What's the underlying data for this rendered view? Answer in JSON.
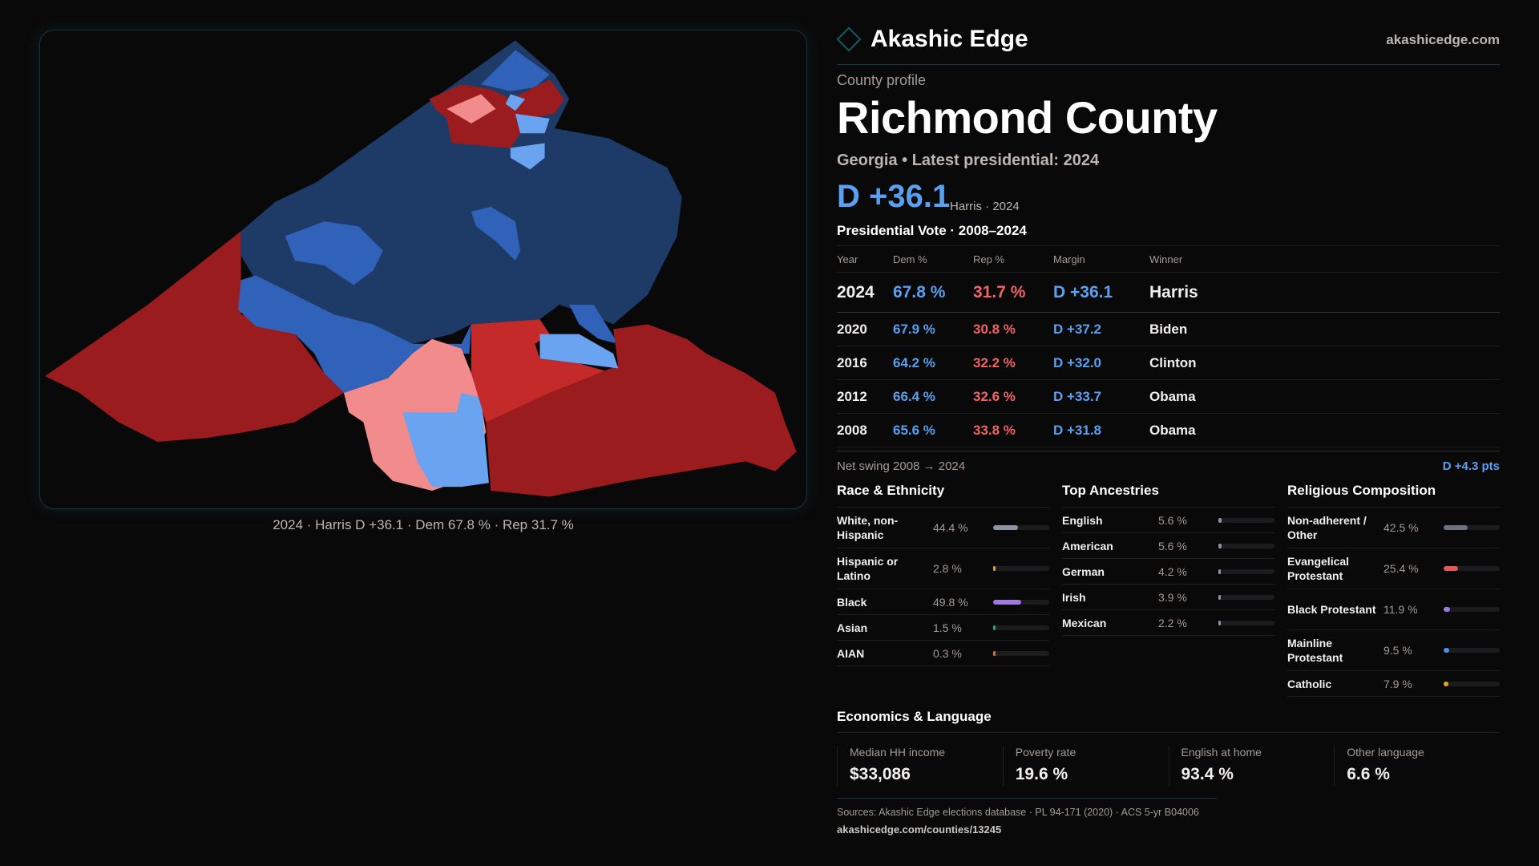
{
  "brand": {
    "name": "Akashic Edge",
    "site": "akashicedge.com"
  },
  "header": {
    "kicker": "County profile",
    "title": "Richmond County",
    "subtitle": "Georgia • Latest presidential: 2024",
    "margin": "D +36.1",
    "margin_note": "Harris · 2024"
  },
  "map": {
    "caption": "2024 · Harris D +36.1 · Dem 67.8 % · Rep 31.7 %",
    "colors": {
      "safe_dem": "#1e3a66",
      "lean_dem": "#2f62b8",
      "tilt_dem": "#6aa3f0",
      "tilt_rep": "#f28b8b",
      "lean_rep": "#c42a2a",
      "safe_rep": "#9b1c1f"
    }
  },
  "votes": {
    "title": "Presidential Vote · 2008–2024",
    "headers": [
      "Year",
      "Dem %",
      "Rep %",
      "Margin",
      "Winner"
    ],
    "rows": [
      {
        "year": "2024",
        "dem": "67.8 %",
        "rep": "31.7 %",
        "margin": "D +36.1",
        "winner": "Harris"
      },
      {
        "year": "2020",
        "dem": "67.9 %",
        "rep": "30.8 %",
        "margin": "D +37.2",
        "winner": "Biden"
      },
      {
        "year": "2016",
        "dem": "64.2 %",
        "rep": "32.2 %",
        "margin": "D +32.0",
        "winner": "Clinton"
      },
      {
        "year": "2012",
        "dem": "66.4 %",
        "rep": "32.6 %",
        "margin": "D +33.7",
        "winner": "Obama"
      },
      {
        "year": "2008",
        "dem": "65.6 %",
        "rep": "33.8 %",
        "margin": "D +31.8",
        "winner": "Obama"
      }
    ]
  },
  "swing": {
    "label": "Net swing 2008 → 2024",
    "value": "D +4.3 pts"
  },
  "race": {
    "title": "Race & Ethnicity",
    "items": [
      {
        "label": "White, non-Hispanic",
        "value": "44.4 %",
        "pct": 44.4,
        "color": "#8a94a6"
      },
      {
        "label": "Hispanic or Latino",
        "value": "2.8 %",
        "pct": 2.8,
        "color": "#e0a030"
      },
      {
        "label": "Black",
        "value": "49.8 %",
        "pct": 49.8,
        "color": "#9b7be0"
      },
      {
        "label": "Asian",
        "value": "1.5 %",
        "pct": 1.5,
        "color": "#2aa37a"
      },
      {
        "label": "AIAN",
        "value": "0.3 %",
        "pct": 0.3,
        "color": "#e07030"
      }
    ]
  },
  "ancestry": {
    "title": "Top Ancestries",
    "items": [
      {
        "label": "English",
        "value": "5.6 %",
        "pct": 5.6,
        "color": "#8a94a6"
      },
      {
        "label": "American",
        "value": "5.6 %",
        "pct": 5.6,
        "color": "#8a94a6"
      },
      {
        "label": "German",
        "value": "4.2 %",
        "pct": 4.2,
        "color": "#8a94a6"
      },
      {
        "label": "Irish",
        "value": "3.9 %",
        "pct": 3.9,
        "color": "#8a94a6"
      },
      {
        "label": "Mexican",
        "value": "2.2 %",
        "pct": 2.2,
        "color": "#8a94a6"
      }
    ]
  },
  "religion": {
    "title": "Religious Composition",
    "items": [
      {
        "label": "Non-adherent / Other",
        "value": "42.5 %",
        "pct": 42.5,
        "color": "#6b7280"
      },
      {
        "label": "Evangelical Protestant",
        "value": "25.4 %",
        "pct": 25.4,
        "color": "#e05a5a"
      },
      {
        "label": "Black Protestant",
        "value": "11.9 %",
        "pct": 11.9,
        "color": "#9b7be0"
      },
      {
        "label": "Mainline Protestant",
        "value": "9.5 %",
        "pct": 9.5,
        "color": "#4a8fe0"
      },
      {
        "label": "Catholic",
        "value": "7.9 %",
        "pct": 7.9,
        "color": "#e0a820"
      }
    ]
  },
  "economics": {
    "title": "Economics & Language",
    "stats": [
      {
        "label": "Median HH income",
        "value": "$33,086"
      },
      {
        "label": "Poverty rate",
        "value": "19.6 %"
      },
      {
        "label": "English at home",
        "value": "93.4 %"
      },
      {
        "label": "Other language",
        "value": "6.6 %"
      }
    ]
  },
  "footer": {
    "sources": "Sources: Akashic Edge elections database · PL 94-171 (2020) · ACS 5-yr B04006",
    "url": "akashicedge.com/counties/13245"
  }
}
